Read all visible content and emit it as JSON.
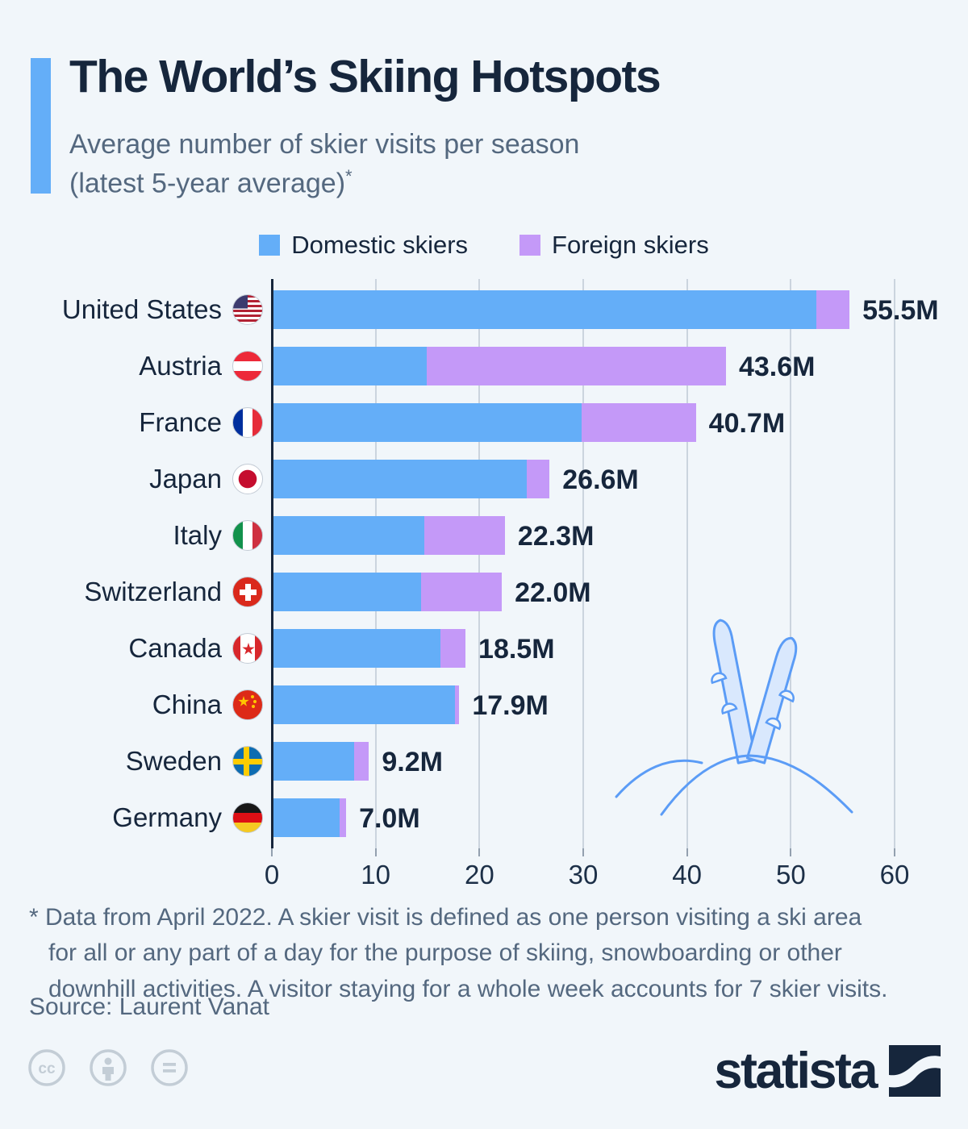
{
  "header": {
    "title": "The World’s Skiing Hotspots",
    "subtitle_line1": "Average number of skier visits per season",
    "subtitle_line2": "(latest 5-year average)",
    "footnote_mark": "*",
    "accent_color": "#64aef8"
  },
  "legend": [
    {
      "label": "Domestic skiers",
      "color": "#64aef8"
    },
    {
      "label": "Foreign skiers",
      "color": "#c499f8"
    }
  ],
  "chart_data": {
    "type": "bar",
    "orientation": "horizontal",
    "stacked": true,
    "unit": "million skier visits",
    "title": "The World’s Skiing Hotspots",
    "categories": [
      "United States",
      "Austria",
      "France",
      "Japan",
      "Italy",
      "Switzerland",
      "Canada",
      "China",
      "Sweden",
      "Germany"
    ],
    "flags": [
      "us",
      "at",
      "fr",
      "jp",
      "it",
      "ch",
      "ca",
      "cn",
      "se",
      "de"
    ],
    "series": [
      {
        "name": "Domestic skiers",
        "color": "#64aef8",
        "values": [
          52.3,
          14.8,
          29.7,
          24.4,
          14.5,
          14.2,
          16.1,
          17.5,
          7.8,
          6.4
        ]
      },
      {
        "name": "Foreign skiers",
        "color": "#c499f8",
        "values": [
          3.2,
          28.8,
          11.0,
          2.2,
          7.8,
          7.8,
          2.4,
          0.4,
          1.4,
          0.6
        ]
      }
    ],
    "totals": [
      55.5,
      43.6,
      40.7,
      26.6,
      22.3,
      22.0,
      18.5,
      17.9,
      9.2,
      7.0
    ],
    "total_labels": [
      "55.5M",
      "43.6M",
      "40.7M",
      "26.6M",
      "22.3M",
      "22.0M",
      "18.5M",
      "17.9M",
      "9.2M",
      "7.0M"
    ],
    "x_ticks": [
      0,
      10,
      20,
      30,
      40,
      50,
      60
    ],
    "xlim": [
      0,
      60
    ],
    "grid": true,
    "legend_position": "top",
    "axis_color": "#16263c",
    "gridline_color": "#cbd4de"
  },
  "footnote": {
    "lines": [
      "* Data from April 2022. A skier visit is defined as one person visiting a ski area",
      "for all or any part of a day for the purpose of skiing, snowboarding or other",
      "downhill activities. A visitor staying for a whole week accounts for 7 skier visits."
    ]
  },
  "source": "Source: Laurent Vanat",
  "footer": {
    "brand": "statista",
    "license_icons": [
      "cc-icon",
      "attribution-icon",
      "nd-icon"
    ]
  }
}
